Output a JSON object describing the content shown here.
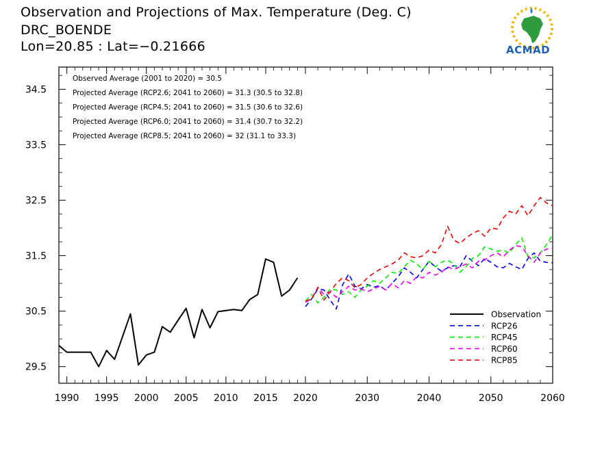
{
  "header": {
    "title": "Observation and Projections of Max. Temperature (Deg. C)",
    "station": "DRC_BOENDE",
    "coords": "Lon=20.85 : Lat=−0.21666"
  },
  "logo": {
    "text": "ACMAD"
  },
  "chart_data": {
    "type": "line",
    "xlim": [
      1989,
      2060
    ],
    "ylim": [
      29.2,
      34.9
    ],
    "x_ticks": [
      1990,
      1995,
      2000,
      2005,
      2010,
      2015,
      2020,
      2030,
      2040,
      2050,
      2060
    ],
    "y_ticks": [
      29.5,
      30.5,
      31.5,
      32.5,
      33.5,
      34.5
    ],
    "y_tick_labels": [
      "29.5",
      "30.5",
      "31.5",
      "32.5",
      "33.5",
      "34.5"
    ],
    "annotations": [
      "Observed Average (2001 to 2020) = 30.5",
      "Projected Average (RCP2.6; 2041 to 2060) = 31.3 (30.5 to 32.8)",
      "Projected Average (RCP4.5; 2041 to 2060) = 31.5 (30.6 to 32.6)",
      "Projected Average (RCP6.0; 2041 to 2060) = 31.4 (30.7 to 32.2)",
      "Projected Average (RCP8.5; 2041 to 2060) = 32 (31.1 to 33.3)"
    ],
    "legend_position": "bottom-right",
    "series": [
      {
        "name": "Observation",
        "color": "#000000",
        "dashed": false,
        "x": [
          1989,
          1990,
          1991,
          1992,
          1993,
          1994,
          1995,
          1996,
          1997,
          1998,
          1999,
          2000,
          2001,
          2002,
          2003,
          2004,
          2005,
          2006,
          2007,
          2008,
          2009,
          2010,
          2011,
          2012,
          2013,
          2014,
          2015,
          2016,
          2017,
          2018,
          2019
        ],
        "y": [
          29.88,
          29.76,
          29.76,
          29.76,
          29.76,
          29.5,
          29.79,
          29.63,
          30.04,
          30.45,
          29.53,
          29.71,
          29.76,
          30.22,
          30.12,
          30.34,
          30.55,
          30.02,
          30.53,
          30.2,
          30.49,
          30.51,
          30.53,
          30.51,
          30.71,
          30.8,
          31.44,
          31.38,
          30.77,
          30.88,
          31.1
        ]
      },
      {
        "name": "RCP26",
        "color": "#0000ee",
        "dashed": true,
        "x": [
          2020,
          2021,
          2022,
          2023,
          2024,
          2025,
          2026,
          2027,
          2028,
          2029,
          2030,
          2031,
          2032,
          2033,
          2034,
          2035,
          2036,
          2037,
          2038,
          2039,
          2040,
          2041,
          2042,
          2043,
          2044,
          2045,
          2046,
          2047,
          2048,
          2049,
          2050,
          2051,
          2052,
          2053,
          2054,
          2055,
          2056,
          2057,
          2058,
          2059,
          2060
        ],
        "y": [
          30.58,
          30.72,
          30.9,
          30.88,
          30.7,
          30.54,
          30.97,
          31.17,
          30.95,
          30.9,
          30.98,
          30.93,
          30.96,
          30.88,
          31.0,
          31.12,
          31.28,
          31.2,
          31.1,
          31.25,
          31.4,
          31.3,
          31.22,
          31.28,
          31.32,
          31.3,
          31.5,
          31.4,
          31.32,
          31.45,
          31.38,
          31.3,
          31.28,
          31.36,
          31.3,
          31.25,
          31.45,
          31.55,
          31.4,
          31.38,
          31.37
        ]
      },
      {
        "name": "RCP45",
        "color": "#00ee00",
        "dashed": true,
        "x": [
          2020,
          2021,
          2022,
          2023,
          2024,
          2025,
          2026,
          2027,
          2028,
          2029,
          2030,
          2031,
          2032,
          2033,
          2034,
          2035,
          2036,
          2037,
          2038,
          2039,
          2040,
          2041,
          2042,
          2043,
          2044,
          2045,
          2046,
          2047,
          2048,
          2049,
          2050,
          2051,
          2052,
          2053,
          2054,
          2055,
          2056,
          2057,
          2058,
          2059,
          2060
        ],
        "y": [
          30.68,
          30.8,
          30.65,
          30.75,
          30.9,
          30.88,
          30.8,
          30.85,
          30.75,
          30.88,
          30.95,
          31.05,
          31.0,
          31.1,
          31.2,
          31.18,
          31.3,
          31.42,
          31.35,
          31.25,
          31.4,
          31.3,
          31.38,
          31.42,
          31.35,
          31.2,
          31.3,
          31.45,
          31.5,
          31.66,
          31.62,
          31.58,
          31.6,
          31.55,
          31.7,
          31.82,
          31.48,
          31.46,
          31.55,
          31.7,
          31.88
        ]
      },
      {
        "name": "RCP60",
        "color": "#ee00ee",
        "dashed": true,
        "x": [
          2020,
          2021,
          2022,
          2023,
          2024,
          2025,
          2026,
          2027,
          2028,
          2029,
          2030,
          2031,
          2032,
          2033,
          2034,
          2035,
          2036,
          2037,
          2038,
          2039,
          2040,
          2041,
          2042,
          2043,
          2044,
          2045,
          2046,
          2047,
          2048,
          2049,
          2050,
          2051,
          2052,
          2053,
          2054,
          2055,
          2056,
          2057,
          2058,
          2059,
          2060
        ],
        "y": [
          30.66,
          30.72,
          30.93,
          30.8,
          30.85,
          30.75,
          30.85,
          30.95,
          30.88,
          30.9,
          30.85,
          30.9,
          30.95,
          30.88,
          31.0,
          30.92,
          31.05,
          31.0,
          31.12,
          31.1,
          31.2,
          31.15,
          31.2,
          31.3,
          31.25,
          31.3,
          31.35,
          31.28,
          31.4,
          31.42,
          31.5,
          31.55,
          31.48,
          31.6,
          31.68,
          31.66,
          31.5,
          31.38,
          31.55,
          31.62,
          31.63
        ]
      },
      {
        "name": "RCP85",
        "color": "#ee0000",
        "dashed": true,
        "x": [
          2020,
          2021,
          2022,
          2023,
          2024,
          2025,
          2026,
          2027,
          2028,
          2029,
          2030,
          2031,
          2032,
          2033,
          2034,
          2035,
          2036,
          2037,
          2038,
          2039,
          2040,
          2041,
          2042,
          2043,
          2044,
          2045,
          2046,
          2047,
          2048,
          2049,
          2050,
          2051,
          2052,
          2053,
          2054,
          2055,
          2056,
          2057,
          2058,
          2059,
          2060
        ],
        "y": [
          30.68,
          30.72,
          30.93,
          30.7,
          30.85,
          31.0,
          31.1,
          31.05,
          30.92,
          30.98,
          31.1,
          31.18,
          31.25,
          31.3,
          31.35,
          31.42,
          31.55,
          31.48,
          31.46,
          31.5,
          31.6,
          31.55,
          31.7,
          32.03,
          31.78,
          31.72,
          31.82,
          31.9,
          31.95,
          31.85,
          32.0,
          31.98,
          32.18,
          32.3,
          32.25,
          32.4,
          32.22,
          32.4,
          32.55,
          32.45,
          32.4
        ]
      }
    ]
  }
}
